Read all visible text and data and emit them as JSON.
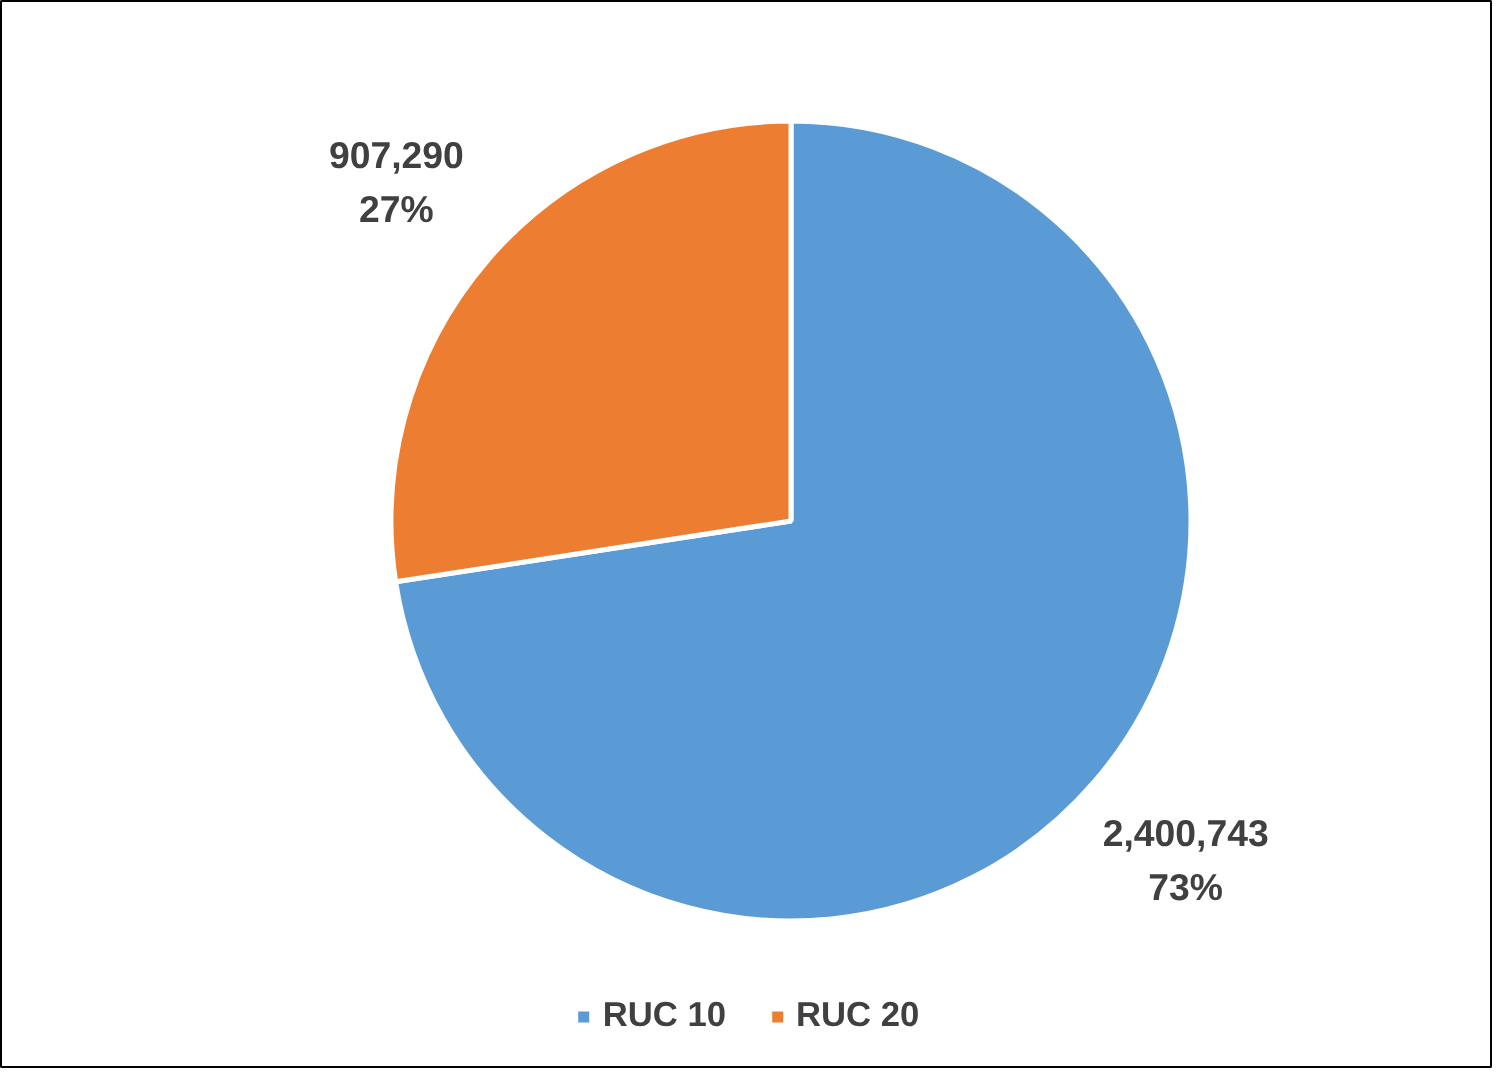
{
  "chart_data": {
    "type": "pie",
    "categories": [
      "RUC 10",
      "RUC 20"
    ],
    "values": [
      2400743,
      907290
    ],
    "colors": [
      "#5b9bd5",
      "#ed7d31"
    ],
    "value_labels": [
      "2,400,743\n73%",
      "907,290\n27%"
    ],
    "legend": "bottom"
  }
}
